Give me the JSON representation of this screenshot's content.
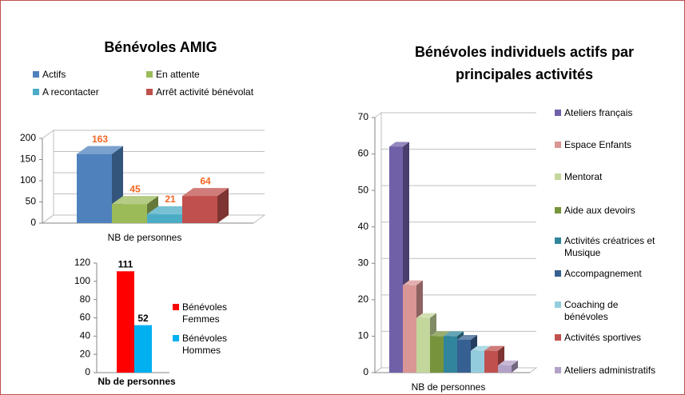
{
  "chart_data": [
    {
      "type": "bar3d",
      "title": "Bénévoles AMIG",
      "categories": [
        "NB de personnes"
      ],
      "series": [
        {
          "name": "Actifs",
          "color": "#4f81bd",
          "values": [
            163
          ]
        },
        {
          "name": "En attente",
          "color": "#9bbb59",
          "values": [
            45
          ]
        },
        {
          "name": "A recontacter",
          "color": "#4bacc6",
          "values": [
            21
          ]
        },
        {
          "name": "Arrêt activité bénévolat",
          "color": "#c0504d",
          "values": [
            64
          ]
        }
      ],
      "ylim": [
        0,
        200
      ],
      "yticks": [
        0,
        50,
        100,
        150,
        200
      ],
      "grid": true,
      "data_labels": true,
      "label_color": "#f26522"
    },
    {
      "type": "bar",
      "categories": [
        "Nb de personnes"
      ],
      "series": [
        {
          "name": "Bénévoles Femmes",
          "color": "#ff0000",
          "values": [
            111
          ]
        },
        {
          "name": "Bénévoles Hommes",
          "color": "#00b0f0",
          "values": [
            52
          ]
        }
      ],
      "ylim": [
        0,
        120
      ],
      "yticks": [
        0,
        20,
        40,
        60,
        80,
        100,
        120
      ],
      "grid": false,
      "data_labels": true,
      "label_color": "#000000"
    },
    {
      "type": "bar3d",
      "title": "Bénévoles individuels actifs par principales activités",
      "categories": [
        "NB de personnes"
      ],
      "series": [
        {
          "name": "Ateliers français",
          "color": "#7060a8",
          "values": [
            62
          ]
        },
        {
          "name": "Espace Enfants",
          "color": "#d99694",
          "values": [
            24
          ]
        },
        {
          "name": "Mentorat",
          "color": "#c3d69b",
          "values": [
            15
          ]
        },
        {
          "name": "Aide aux devoirs",
          "color": "#77933c",
          "values": [
            10
          ]
        },
        {
          "name": "Activités créatrices et Musique",
          "color": "#31859c",
          "values": [
            10
          ]
        },
        {
          "name": "Accompagnement",
          "color": "#376092",
          "values": [
            9
          ]
        },
        {
          "name": "Coaching de bénévoles",
          "color": "#93cddd",
          "values": [
            6
          ]
        },
        {
          "name": "Activités sportives",
          "color": "#c0504d",
          "values": [
            6
          ]
        },
        {
          "name": "Ateliers administratifs",
          "color": "#b3a2c7",
          "values": [
            2
          ]
        }
      ],
      "ylim": [
        0,
        70
      ],
      "yticks": [
        0,
        10,
        20,
        30,
        40,
        50,
        60,
        70
      ],
      "grid": true,
      "data_labels": false
    }
  ]
}
